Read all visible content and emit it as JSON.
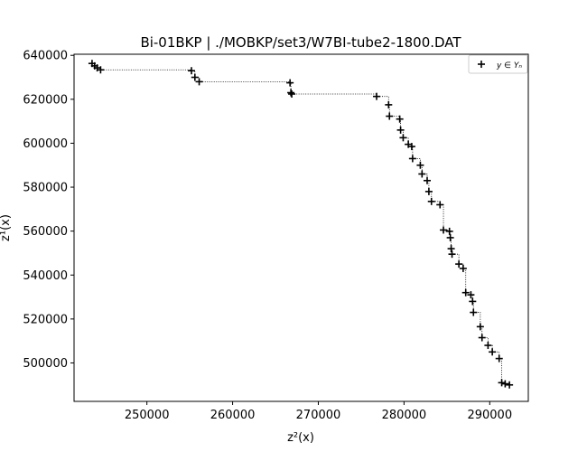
{
  "chart_data": {
    "type": "scatter",
    "title": "Bi-01BKP | ./MOBKP/set3/W7BI-tube2-1800.DAT",
    "xlabel": "z²(x)",
    "ylabel": "z¹(x)",
    "xlim": [
      241500,
      294500
    ],
    "ylim": [
      482500,
      640500
    ],
    "xticks": [
      250000,
      260000,
      270000,
      280000,
      290000
    ],
    "yticks": [
      500000,
      520000,
      540000,
      560000,
      580000,
      600000,
      620000,
      640000
    ],
    "grid": false,
    "legend": {
      "position": "top-right",
      "entries": [
        "y ∈ Yₙ"
      ]
    },
    "series": [
      {
        "name": "y ∈ Yₙ",
        "marker": "+",
        "line": "dotted-step",
        "points": [
          [
            243600,
            636300
          ],
          [
            243900,
            635200
          ],
          [
            244200,
            634300
          ],
          [
            244600,
            633400
          ],
          [
            255200,
            633000
          ],
          [
            255600,
            630000
          ],
          [
            256100,
            628000
          ],
          [
            266700,
            627500
          ],
          [
            266800,
            623000
          ],
          [
            266900,
            622400
          ],
          [
            276800,
            621300
          ],
          [
            278200,
            617500
          ],
          [
            278300,
            612300
          ],
          [
            279500,
            611000
          ],
          [
            279600,
            606000
          ],
          [
            279900,
            602500
          ],
          [
            280500,
            599500
          ],
          [
            280900,
            598500
          ],
          [
            281000,
            593000
          ],
          [
            281900,
            590000
          ],
          [
            282100,
            586000
          ],
          [
            282700,
            583000
          ],
          [
            282900,
            578000
          ],
          [
            283200,
            573500
          ],
          [
            284200,
            572000
          ],
          [
            284600,
            560500
          ],
          [
            285300,
            559900
          ],
          [
            285400,
            557000
          ],
          [
            285500,
            552000
          ],
          [
            285600,
            549500
          ],
          [
            286400,
            545000
          ],
          [
            286900,
            543000
          ],
          [
            287200,
            532000
          ],
          [
            287800,
            531000
          ],
          [
            288000,
            528000
          ],
          [
            288100,
            523000
          ],
          [
            288900,
            516500
          ],
          [
            289100,
            511500
          ],
          [
            289800,
            508000
          ],
          [
            290300,
            505000
          ],
          [
            291100,
            502000
          ],
          [
            291400,
            491000
          ],
          [
            291800,
            490500
          ],
          [
            292300,
            490000
          ]
        ]
      }
    ]
  }
}
